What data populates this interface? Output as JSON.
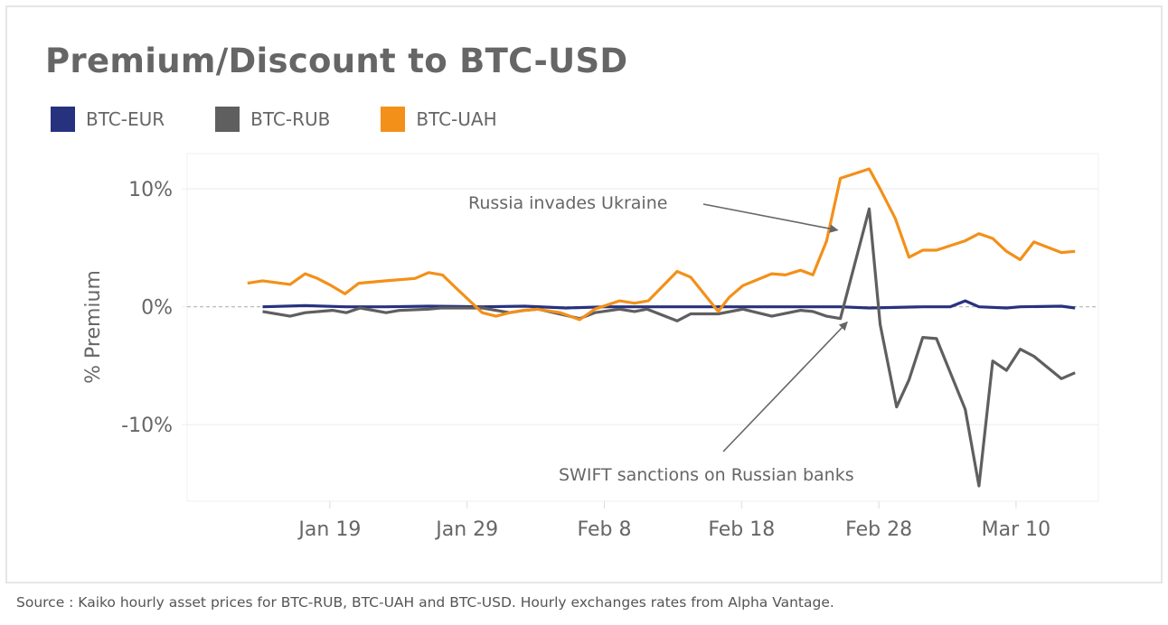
{
  "chart_data": {
    "type": "line",
    "title": "Premium/Discount to BTC-USD",
    "xlabel": "",
    "ylabel": "% Premium",
    "ylim": [
      -16.5,
      13
    ],
    "xlim": [
      8.6,
      75
    ],
    "x_unit": "day number (Jan 1 = 1; Feb 8 = 39; Mar 10 = 69)",
    "x_ticks": [
      {
        "day": 19,
        "label": "Jan 19"
      },
      {
        "day": 29,
        "label": "Jan 29"
      },
      {
        "day": 39,
        "label": "Feb 8"
      },
      {
        "day": 49,
        "label": "Feb 18"
      },
      {
        "day": 59,
        "label": "Feb 28"
      },
      {
        "day": 69,
        "label": "Mar 10"
      }
    ],
    "y_ticks": [
      {
        "value": 10,
        "label": "10%"
      },
      {
        "value": 0,
        "label": "0%"
      },
      {
        "value": -10,
        "label": "-10%"
      }
    ],
    "grid": true,
    "legend_position": "top-left",
    "series": [
      {
        "name": "BTC-EUR",
        "color": "#27327f",
        "points": [
          [
            14.1,
            0.0
          ],
          [
            17.2,
            0.1
          ],
          [
            20.2,
            0.0
          ],
          [
            23.1,
            0.0
          ],
          [
            26.2,
            0.05
          ],
          [
            30.1,
            0.0
          ],
          [
            33.2,
            0.05
          ],
          [
            36.2,
            -0.1
          ],
          [
            39.1,
            0.0
          ],
          [
            42.1,
            0.0
          ],
          [
            45.3,
            0.0
          ],
          [
            49.1,
            0.0
          ],
          [
            53.3,
            0.0
          ],
          [
            56.2,
            0.0
          ],
          [
            58.3,
            -0.1
          ],
          [
            62.2,
            0.0
          ],
          [
            64.2,
            0.0
          ],
          [
            65.3,
            0.5
          ],
          [
            66.3,
            0.0
          ],
          [
            68.3,
            -0.1
          ],
          [
            69.3,
            0.0
          ],
          [
            72.3,
            0.05
          ],
          [
            73.3,
            -0.1
          ]
        ]
      },
      {
        "name": "BTC-RUB",
        "color": "#5f5f5f",
        "points": [
          [
            14.1,
            -0.4
          ],
          [
            16.1,
            -0.8
          ],
          [
            17.2,
            -0.5
          ],
          [
            19.2,
            -0.3
          ],
          [
            20.2,
            -0.5
          ],
          [
            21.2,
            -0.1
          ],
          [
            23.1,
            -0.5
          ],
          [
            24.1,
            -0.3
          ],
          [
            26.2,
            -0.2
          ],
          [
            27.1,
            -0.1
          ],
          [
            30.1,
            -0.1
          ],
          [
            32.1,
            -0.5
          ],
          [
            33.2,
            -0.3
          ],
          [
            34.2,
            -0.2
          ],
          [
            37.2,
            -1.0
          ],
          [
            38.3,
            -0.5
          ],
          [
            40.1,
            -0.2
          ],
          [
            41.2,
            -0.4
          ],
          [
            42.1,
            -0.2
          ],
          [
            44.3,
            -1.2
          ],
          [
            45.3,
            -0.6
          ],
          [
            47.3,
            -0.6
          ],
          [
            49.1,
            -0.2
          ],
          [
            51.2,
            -0.8
          ],
          [
            53.3,
            -0.3
          ],
          [
            54.2,
            -0.4
          ],
          [
            55.2,
            -0.8
          ],
          [
            56.2,
            -1.0
          ],
          [
            58.3,
            8.3
          ],
          [
            59.1,
            -1.5
          ],
          [
            60.3,
            -8.5
          ],
          [
            61.2,
            -6.2
          ],
          [
            62.2,
            -2.6
          ],
          [
            63.2,
            -2.7
          ],
          [
            65.3,
            -8.7
          ],
          [
            66.3,
            -15.2
          ],
          [
            67.3,
            -4.6
          ],
          [
            68.3,
            -5.4
          ],
          [
            69.3,
            -3.6
          ],
          [
            70.3,
            -4.2
          ],
          [
            72.3,
            -6.1
          ],
          [
            73.3,
            -5.6
          ]
        ]
      },
      {
        "name": "BTC-UAH",
        "color": "#f39019",
        "points": [
          [
            13.0,
            2.0
          ],
          [
            14.1,
            2.2
          ],
          [
            16.1,
            1.9
          ],
          [
            17.2,
            2.8
          ],
          [
            18.1,
            2.4
          ],
          [
            19.1,
            1.8
          ],
          [
            20.1,
            1.1
          ],
          [
            21.1,
            2.0
          ],
          [
            23.1,
            2.2
          ],
          [
            25.2,
            2.4
          ],
          [
            26.2,
            2.9
          ],
          [
            27.2,
            2.7
          ],
          [
            28.1,
            1.7
          ],
          [
            30.1,
            -0.5
          ],
          [
            31.1,
            -0.8
          ],
          [
            32.1,
            -0.5
          ],
          [
            33.1,
            -0.3
          ],
          [
            34.1,
            -0.2
          ],
          [
            35.8,
            -0.5
          ],
          [
            37.2,
            -1.1
          ],
          [
            38.3,
            -0.2
          ],
          [
            40.1,
            0.5
          ],
          [
            41.2,
            0.3
          ],
          [
            42.2,
            0.5
          ],
          [
            44.3,
            3.0
          ],
          [
            45.3,
            2.5
          ],
          [
            47.3,
            -0.4
          ],
          [
            48.1,
            0.8
          ],
          [
            49.1,
            1.8
          ],
          [
            51.2,
            2.8
          ],
          [
            52.2,
            2.7
          ],
          [
            53.3,
            3.1
          ],
          [
            54.2,
            2.7
          ],
          [
            55.2,
            5.6
          ],
          [
            56.2,
            10.9
          ],
          [
            58.3,
            11.7
          ],
          [
            59.1,
            10.0
          ],
          [
            60.2,
            7.5
          ],
          [
            61.2,
            4.2
          ],
          [
            62.2,
            4.8
          ],
          [
            63.2,
            4.8
          ],
          [
            65.3,
            5.6
          ],
          [
            66.3,
            6.2
          ],
          [
            67.3,
            5.8
          ],
          [
            68.3,
            4.7
          ],
          [
            69.3,
            4.0
          ],
          [
            70.3,
            5.5
          ],
          [
            72.3,
            4.6
          ],
          [
            73.3,
            4.7
          ]
        ]
      }
    ],
    "annotations": [
      {
        "text": "Russia invades Ukraine",
        "target_day": 56.0,
        "target_value": 6.5
      },
      {
        "text": "SWIFT sanctions on Russian banks",
        "target_day": 56.7,
        "target_value": -1.3
      }
    ]
  },
  "source": "Source : Kaiko hourly asset prices  for BTC-RUB, BTC-UAH and BTC-USD. Hourly exchanges rates from  Alpha Vantage."
}
